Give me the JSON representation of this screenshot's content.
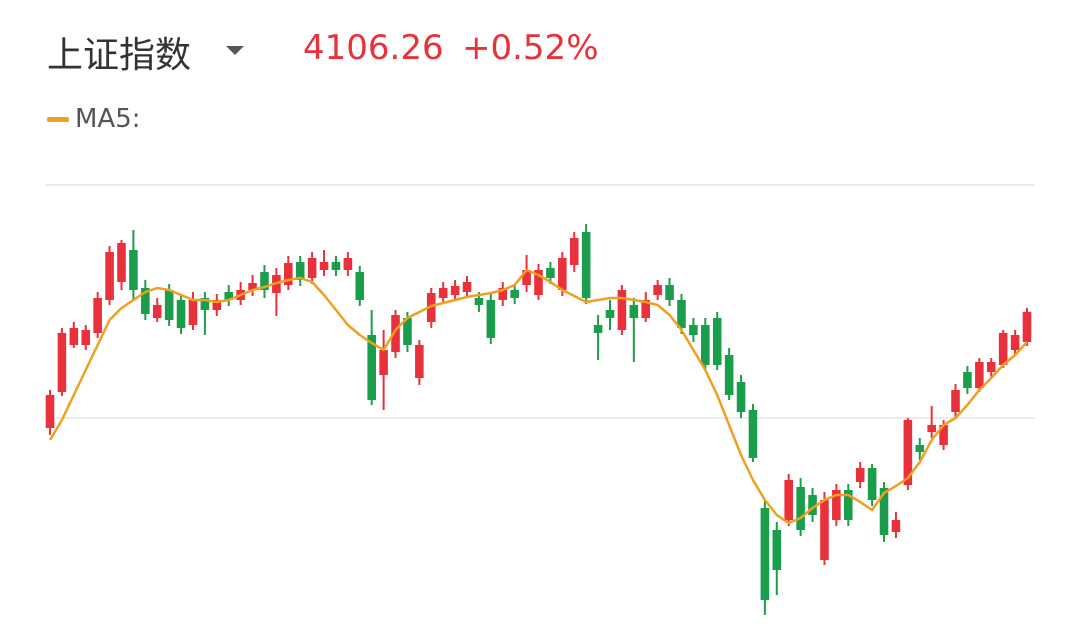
{
  "header": {
    "title": "上证指数",
    "price": "4106.26",
    "change": "+0.52%"
  },
  "chart_data": {
    "type": "candlestick",
    "up_color": "#e8313a",
    "down_color": "#1a9e4b",
    "ylim": [
      3623,
      4296.5
    ],
    "open": [
      3932,
      3986,
      4056.5,
      4056.5,
      4074.5,
      4124,
      4151,
      4199,
      4142,
      4097,
      4139,
      4124,
      4086.5,
      4127,
      4109,
      4136,
      4124,
      4139,
      4166,
      4134.5,
      4146.5,
      4181,
      4157,
      4169,
      4181,
      4169,
      4166,
      4071.5,
      4011.5,
      4046,
      4097,
      4007,
      4091,
      4127,
      4131.5,
      4136,
      4127,
      4124,
      4124,
      4139,
      4146.5,
      4131.5,
      4172,
      4139,
      4176.5,
      4226,
      4086.5,
      4109,
      4079,
      4116.5,
      4097,
      4131.5,
      4146.5,
      4124,
      4086.5,
      4086.5,
      4097,
      4041.5,
      4001,
      3959,
      3812,
      3779,
      3794,
      3843.5,
      3831.5,
      3734,
      3794,
      3839,
      3851,
      3872,
      3842,
      3776,
      3846.5,
      3906.5,
      3926,
      3906.5,
      3956,
      4016,
      3992,
      4016,
      4026.5,
      4049,
      4061
    ],
    "close": [
      3981.5,
      4074.5,
      4082,
      4079,
      4127,
      4196,
      4209.5,
      4139,
      4103,
      4116.5,
      4094,
      4082,
      4124,
      4109,
      4124,
      4124,
      4139,
      4149.5,
      4139,
      4161.5,
      4179.5,
      4154,
      4187,
      4181,
      4169,
      4187,
      4124,
      3974,
      4049,
      4101.5,
      4056.5,
      4056.5,
      4134.5,
      4142,
      4145,
      4151,
      4116.5,
      4067,
      4142,
      4127,
      4169,
      4169,
      4157,
      4187,
      4217,
      4127,
      4074.5,
      4097,
      4139,
      4097,
      4124,
      4146.5,
      4124,
      4082,
      4071.5,
      4026.5,
      4026.5,
      3981.5,
      3956,
      3887,
      3674,
      3719,
      3854,
      3779,
      3801.5,
      3824,
      3839,
      3794,
      3872,
      3824,
      3771.5,
      3794,
      3944,
      3896,
      3936.5,
      3936.5,
      3989,
      3992,
      4031,
      4031,
      4074.5,
      4071.5,
      4106.26
    ],
    "high": [
      3989,
      4082,
      4091,
      4086.5,
      4136,
      4205,
      4214,
      4229,
      4154,
      4127,
      4148,
      4133,
      4136,
      4136,
      4133,
      4146.5,
      4151,
      4161.5,
      4176.5,
      4172,
      4190,
      4190,
      4196,
      4199,
      4190,
      4196,
      4175,
      4109,
      4079,
      4109,
      4106,
      4064,
      4142,
      4151,
      4154,
      4160,
      4136,
      4133,
      4151,
      4148,
      4191.5,
      4178,
      4181,
      4196,
      4226,
      4238,
      4101.5,
      4124,
      4146.5,
      4127,
      4136,
      4154,
      4157,
      4133,
      4097,
      4097,
      4106,
      4052,
      4011.5,
      3968,
      3824,
      3791,
      3863,
      3857,
      3842,
      3836,
      3848,
      3848,
      3881,
      3878,
      3851,
      3806,
      3947,
      3917,
      3965,
      3944,
      3998,
      4025,
      4037,
      4037,
      4079,
      4079,
      4112
    ],
    "low": [
      3921.5,
      3980,
      4052,
      4049,
      4067,
      4116.5,
      4139,
      4124,
      4094,
      4091,
      4085,
      4073,
      4079,
      4071.5,
      4100,
      4115,
      4116.5,
      4130,
      4127,
      4100,
      4139,
      4145,
      4148,
      4160,
      4160,
      4160,
      4115,
      3966.5,
      3959,
      4037,
      4046,
      3996.5,
      4082,
      4118,
      4124,
      4127,
      4106,
      4058,
      4115,
      4118,
      4136,
      4124,
      4148,
      4130,
      4166,
      4118,
      4034,
      4079,
      4071.5,
      4031,
      4091,
      4124,
      4115,
      4073,
      4061,
      4019,
      4019,
      3974,
      3947,
      3881,
      3651.5,
      3681.5,
      3785,
      3770,
      3791,
      3726.5,
      3785,
      3785,
      3842,
      3815,
      3761,
      3767,
      3839,
      3884,
      3917,
      3899,
      3947,
      3983,
      3986,
      4007,
      4022,
      4040,
      4055
    ],
    "ma5": {
      "name": "MA5:",
      "color": "#f0a020",
      "values": [
        3914,
        3944,
        3981.5,
        4019,
        4056.5,
        4094,
        4112,
        4124,
        4136,
        4142,
        4139,
        4131.5,
        4124,
        4124,
        4121,
        4124,
        4131.5,
        4139,
        4143.5,
        4149.5,
        4154,
        4157,
        4151,
        4131.5,
        4109,
        4086.5,
        4071.5,
        4059.5,
        4049,
        4079,
        4097,
        4106,
        4115,
        4119.5,
        4124,
        4128.5,
        4131.5,
        4134.5,
        4139,
        4146.5,
        4169,
        4161.5,
        4151,
        4139,
        4130,
        4121,
        4124,
        4127,
        4127,
        4124,
        4121,
        4116.5,
        4101.5,
        4079,
        4049,
        4019,
        3981.5,
        3936.5,
        3891.5,
        3854,
        3824,
        3801.5,
        3789.5,
        3797,
        3812,
        3824,
        3831.5,
        3831.5,
        3821,
        3809,
        3834.5,
        3845,
        3857,
        3881,
        3914,
        3936.5,
        3947,
        3966.5,
        3989,
        4007,
        4026.5,
        4041.5,
        4061
      ]
    }
  }
}
